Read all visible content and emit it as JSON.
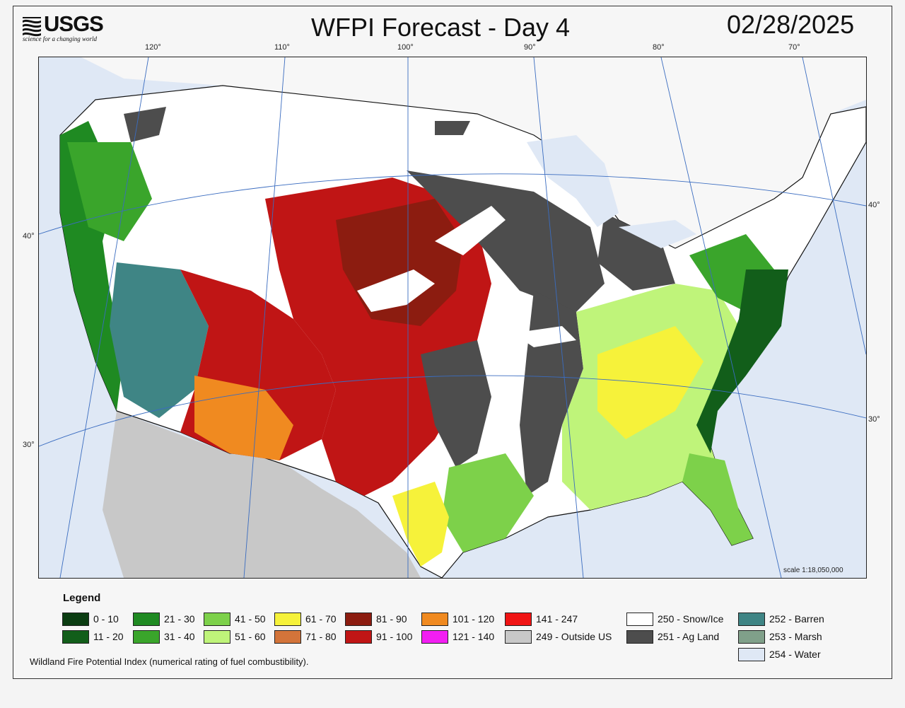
{
  "header": {
    "logo_text": "USGS",
    "logo_tagline": "science for a changing world",
    "title": "WFPI Forecast - Day 4",
    "date": "02/28/2025"
  },
  "graticule": {
    "longitude_labels": [
      "120°",
      "110°",
      "100°",
      "90°",
      "80°",
      "70°"
    ],
    "latitude_labels_left": [
      "40°",
      "30°"
    ],
    "latitude_labels_right": [
      "40°",
      "30°"
    ]
  },
  "map": {
    "scale_text": "scale 1:18,050,000",
    "background_water_color": "#dfe8f5",
    "outside_us_color": "#c8c8c8"
  },
  "legend": {
    "title": "Legend",
    "items": [
      {
        "label": "0 - 10",
        "color": "#0b3d12"
      },
      {
        "label": "11 - 20",
        "color": "#125e1a"
      },
      {
        "label": "21 - 30",
        "color": "#1f8a22"
      },
      {
        "label": "31 - 40",
        "color": "#3aa52b"
      },
      {
        "label": "41 - 50",
        "color": "#7dd14a"
      },
      {
        "label": "51 - 60",
        "color": "#bff47a"
      },
      {
        "label": "61 - 70",
        "color": "#f6f23a"
      },
      {
        "label": "71 - 80",
        "color": "#d3743a"
      },
      {
        "label": "81 - 90",
        "color": "#8c1c10"
      },
      {
        "label": "91 - 100",
        "color": "#c01515"
      },
      {
        "label": "101 - 120",
        "color": "#f08a20"
      },
      {
        "label": "121 - 140",
        "color": "#f21ef2"
      },
      {
        "label": "141 - 247",
        "color": "#f01414"
      },
      {
        "label": "249 - Outside US",
        "color": "#c8c8c8"
      },
      {
        "label": "250 - Snow/Ice",
        "color": "#ffffff"
      },
      {
        "label": "251 - Ag Land",
        "color": "#4d4d4d"
      },
      {
        "label": "252 - Barren",
        "color": "#3f8585"
      },
      {
        "label": "253 - Marsh",
        "color": "#80a08a"
      },
      {
        "label": "254 - Water",
        "color": "#dfe8f5"
      }
    ],
    "caption": "Wildland Fire Potential Index (numerical rating of fuel combustibility)."
  }
}
